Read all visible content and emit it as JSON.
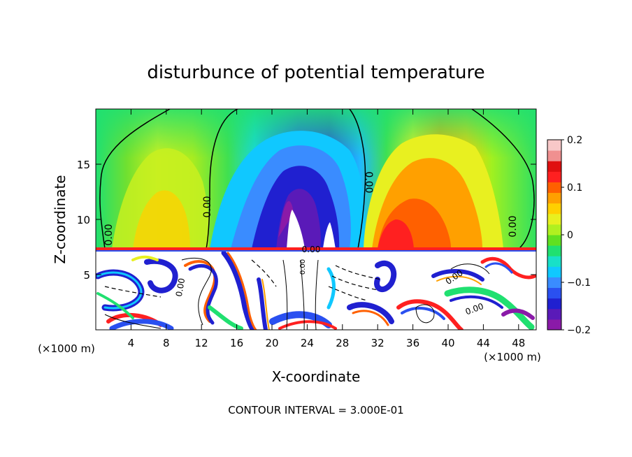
{
  "chart_data": {
    "type": "heatmap",
    "title": "disturbunce of potential temperature",
    "xlabel": "X-coordinate",
    "ylabel": "Z-coordinate",
    "x_unit": "(×1000 m)",
    "y_unit": "(×1000 m)",
    "xlim": [
      0,
      50
    ],
    "ylim": [
      0,
      20
    ],
    "x_ticks": [
      4,
      8,
      12,
      16,
      20,
      24,
      28,
      32,
      36,
      40,
      44,
      48
    ],
    "x_tick_labels": [
      "4",
      "8",
      "12",
      "16",
      "20",
      "24",
      "28",
      "32",
      "36",
      "40",
      "44",
      "48"
    ],
    "y_ticks": [
      5,
      10,
      15
    ],
    "y_tick_labels": [
      "5",
      "10",
      "15"
    ],
    "colorbar": {
      "range": [
        -0.2,
        0.2
      ],
      "ticks": [
        0.2,
        0.1,
        0,
        -0.1,
        -0.2
      ],
      "tick_labels": [
        "0.2",
        "0.1",
        "0",
        "−0.1",
        "−0.2"
      ],
      "colors": [
        "#8a1aa8",
        "#5a1ab8",
        "#2020d0",
        "#2a50f0",
        "#3a8cff",
        "#10c8ff",
        "#18e0c8",
        "#20e070",
        "#60e020",
        "#b0f020",
        "#e8f020",
        "#ffd000",
        "#ffa000",
        "#ff6000",
        "#ff2020",
        "#e01010",
        "#f09090",
        "#f8c8c8"
      ]
    },
    "contour_labels": [
      "0.00",
      "0.00",
      "0.00",
      "0.00",
      "0.00",
      "0.00",
      "0.00",
      "0.00",
      "0.00"
    ],
    "footer": "CONTOUR INTERVAL = 3.000E-01"
  }
}
